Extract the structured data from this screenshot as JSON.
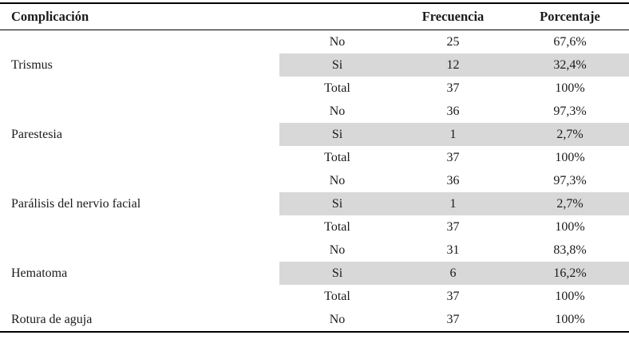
{
  "colors": {
    "text": "#1a1a1a",
    "row_shade": "#d8d8d8",
    "border": "#000000"
  },
  "table": {
    "headers": {
      "complication": "Complicación",
      "answer": "",
      "frequency": "Frecuencia",
      "percentage": "Porcentaje"
    },
    "groups": [
      {
        "label": "Trismus",
        "rows": [
          {
            "answer": "No",
            "frequency": "25",
            "percentage": "67,6%",
            "shaded": false
          },
          {
            "answer": "Si",
            "frequency": "12",
            "percentage": "32,4%",
            "shaded": true
          },
          {
            "answer": "Total",
            "frequency": "37",
            "percentage": "100%",
            "shaded": false
          }
        ]
      },
      {
        "label": "Parestesia",
        "rows": [
          {
            "answer": "No",
            "frequency": "36",
            "percentage": "97,3%",
            "shaded": false
          },
          {
            "answer": "Si",
            "frequency": "1",
            "percentage": "2,7%",
            "shaded": true
          },
          {
            "answer": "Total",
            "frequency": "37",
            "percentage": "100%",
            "shaded": false
          }
        ]
      },
      {
        "label": "Parálisis del nervio facial",
        "rows": [
          {
            "answer": "No",
            "frequency": "36",
            "percentage": "97,3%",
            "shaded": false
          },
          {
            "answer": "Si",
            "frequency": "1",
            "percentage": "2,7%",
            "shaded": true
          },
          {
            "answer": "Total",
            "frequency": "37",
            "percentage": "100%",
            "shaded": false
          }
        ]
      },
      {
        "label": "Hematoma",
        "rows": [
          {
            "answer": "No",
            "frequency": "31",
            "percentage": "83,8%",
            "shaded": false
          },
          {
            "answer": "Si",
            "frequency": "6",
            "percentage": "16,2%",
            "shaded": true
          },
          {
            "answer": "Total",
            "frequency": "37",
            "percentage": "100%",
            "shaded": false
          }
        ]
      },
      {
        "label": "Rotura de aguja",
        "rows": [
          {
            "answer": "No",
            "frequency": "37",
            "percentage": "100%",
            "shaded": false
          }
        ]
      }
    ]
  }
}
